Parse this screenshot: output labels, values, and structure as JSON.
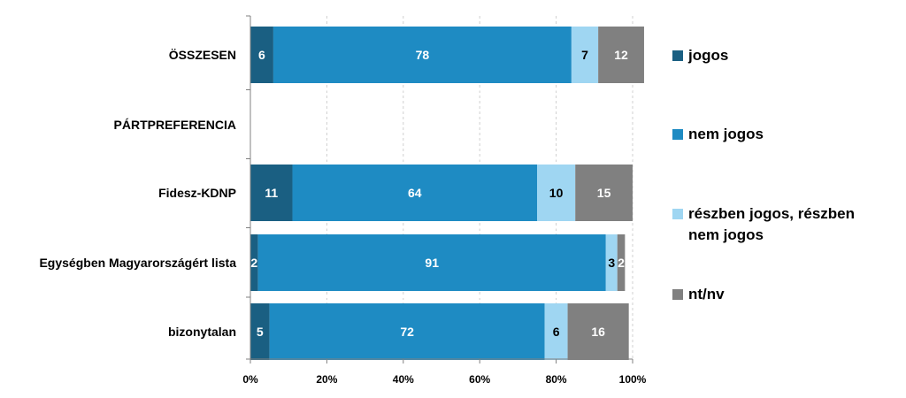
{
  "chart_data": {
    "type": "bar",
    "orientation": "horizontal",
    "stacked": true,
    "percent": true,
    "categories": [
      "ÖSSZESEN",
      "PÁRTPREFERENCIA",
      "Fidesz-KDNP",
      "Egységben Magyarországért lista",
      "bizonytalan"
    ],
    "series": [
      {
        "name": "jogos",
        "color": "#1a5f82",
        "values": [
          6,
          null,
          11,
          2,
          5
        ],
        "labels": [
          "6",
          "",
          "11",
          "2",
          "5"
        ]
      },
      {
        "name": "nem jogos",
        "color": "#1e8bc3",
        "values": [
          78,
          null,
          64,
          91,
          72
        ],
        "labels": [
          "78",
          "",
          "64",
          "91",
          "72"
        ]
      },
      {
        "name": "részben jogos, részben nem jogos",
        "color": "#9fd6f2",
        "values": [
          7,
          null,
          10,
          3,
          6
        ],
        "labels": [
          "7",
          "",
          "10",
          "3",
          "6"
        ]
      },
      {
        "name": "nt/nv",
        "color": "#808080",
        "values": [
          12,
          null,
          15,
          2,
          16
        ],
        "labels": [
          "12",
          "",
          "15",
          "2",
          "16"
        ]
      }
    ],
    "label_colors": [
      "#ffffff",
      "#ffffff",
      "#000000",
      "#ffffff"
    ],
    "xlim": [
      0,
      100
    ],
    "x_ticks": [
      "0%",
      "20%",
      "40%",
      "60%",
      "80%",
      "100%"
    ],
    "x_tick_values": [
      0,
      20,
      40,
      60,
      80,
      100
    ],
    "grid": "vertical-dashed",
    "legend": {
      "position": "right",
      "entries": [
        {
          "lines": [
            "jogos"
          ],
          "color": "#1a5f82"
        },
        {
          "lines": [
            "nem jogos"
          ],
          "color": "#1e8bc3"
        },
        {
          "lines": [
            "részben jogos, részben",
            "nem jogos"
          ],
          "color": "#9fd6f2"
        },
        {
          "lines": [
            "nt/nv"
          ],
          "color": "#808080"
        }
      ]
    },
    "title": "",
    "xlabel": "",
    "ylabel": ""
  }
}
